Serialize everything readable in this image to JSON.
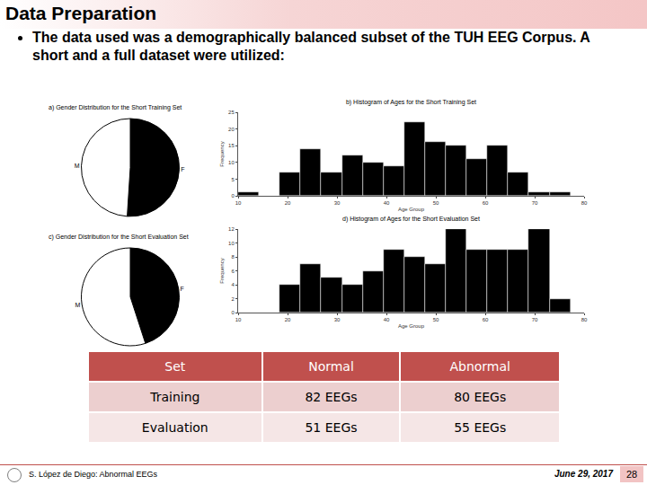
{
  "header": {
    "title": "Data Preparation"
  },
  "bullet": "The data used was a demographically balanced subset of the TUH EEG Corpus. A short and a full dataset were utilized:",
  "chart_data": [
    {
      "type": "pie",
      "title": "a) Gender Distribution for the Short Training Set",
      "categories": [
        "F",
        "M"
      ],
      "values": [
        51,
        49
      ],
      "colors": [
        "#000000",
        "#ffffff"
      ]
    },
    {
      "type": "histogram",
      "title": "b) Histogram of Ages for the Short Training Set",
      "x_label": "Age Group",
      "y_label": "Frequency",
      "bins": [
        10,
        14.2,
        18.4,
        22.6,
        26.8,
        31,
        35.2,
        39.4,
        43.6,
        47.8,
        52,
        56.2,
        60.4,
        64.6,
        68.8,
        73,
        77.2
      ],
      "values": [
        1,
        0,
        7,
        14,
        7,
        12,
        10,
        9,
        22,
        16,
        15,
        11,
        15,
        7,
        1,
        1
      ],
      "color": "#000000",
      "grid": false,
      "xlim": [
        10,
        80
      ],
      "xticks": [
        10,
        20,
        30,
        40,
        50,
        60,
        70,
        80
      ],
      "ylim": [
        0,
        25
      ],
      "yticks": [
        0,
        5,
        10,
        15,
        20,
        25
      ]
    },
    {
      "type": "pie",
      "title": "c) Gender Distribution for the Short Evaluation Set",
      "categories": [
        "F",
        "M"
      ],
      "values": [
        45,
        55
      ],
      "colors": [
        "#000000",
        "#ffffff"
      ]
    },
    {
      "type": "histogram",
      "title": "d) Histogram of Ages for the Short Evaluation Set",
      "x_label": "Age Group",
      "y_label": "Frequency",
      "bins": [
        18.4,
        22.6,
        26.8,
        31,
        35.2,
        39.4,
        43.6,
        47.8,
        52,
        56.2,
        60.4,
        64.6,
        68.8,
        73,
        77.2
      ],
      "values": [
        4,
        7,
        5,
        4,
        6,
        9,
        8,
        7,
        12,
        9,
        9,
        9,
        12,
        2
      ],
      "color": "#000000",
      "grid": false,
      "xlim": [
        10,
        80
      ],
      "xticks": [
        10,
        20,
        30,
        40,
        50,
        60,
        70,
        80
      ],
      "ylim": [
        0,
        12
      ],
      "yticks": [
        0,
        2,
        4,
        6,
        8,
        10,
        12
      ]
    }
  ],
  "table": {
    "header": [
      "Set",
      "Normal",
      "Abnormal"
    ],
    "rows": [
      [
        "Training",
        "82 EEGs",
        "80 EEGs"
      ],
      [
        "Evaluation",
        "51 EEGs",
        "55 EEGs"
      ]
    ]
  },
  "footer": {
    "author": "S. López de Diego: Abnormal EEGs",
    "date": "June 29, 2017",
    "page": "28"
  }
}
